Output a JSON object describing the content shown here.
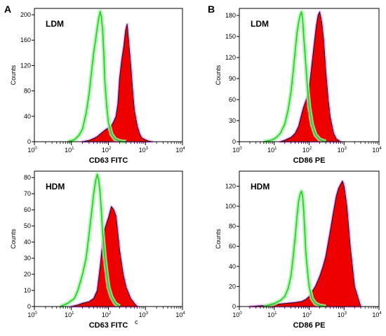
{
  "panel_letters": [
    "A",
    "B"
  ],
  "colors": {
    "filled": "#ee0000",
    "filled_outline": "#111111",
    "control": "#22cc22",
    "control_halo": "#a6f2a6",
    "fill_halo": "#ff77ff"
  },
  "stray_mark": "c",
  "chart_data": [
    {
      "id": "A-LDM",
      "panel": "A",
      "sample": "LDM",
      "type": "area",
      "xlabel": "CD63 FITC",
      "ylabel": "Counts",
      "xscale": "log",
      "xlim": [
        1,
        10000
      ],
      "ylim": [
        0,
        210
      ],
      "yticks": [
        0,
        40,
        80,
        120,
        160,
        200
      ],
      "xtick_bases": [
        "10",
        "10",
        "10",
        "10",
        "10"
      ],
      "xtick_exps": [
        "0",
        "1",
        "2",
        "3",
        "4"
      ],
      "series": [
        {
          "role": "stained",
          "style": "filled",
          "x": [
            20,
            30,
            40,
            50,
            60,
            80,
            100,
            120,
            140,
            160,
            180,
            200,
            230,
            260,
            290,
            320,
            350,
            400,
            450,
            500,
            600,
            700,
            800,
            1000,
            1200,
            1500
          ],
          "y": [
            0,
            2,
            5,
            8,
            12,
            18,
            22,
            25,
            32,
            40,
            60,
            100,
            130,
            150,
            175,
            185,
            160,
            120,
            80,
            50,
            25,
            12,
            6,
            3,
            1,
            0
          ]
        },
        {
          "role": "control",
          "style": "line",
          "x": [
            8,
            12,
            16,
            20,
            25,
            30,
            35,
            40,
            45,
            50,
            55,
            60,
            65,
            70,
            75,
            80,
            90,
            100,
            120,
            150,
            200,
            250,
            300
          ],
          "y": [
            0,
            3,
            10,
            20,
            45,
            75,
            110,
            140,
            160,
            180,
            195,
            205,
            195,
            175,
            140,
            95,
            55,
            30,
            12,
            4,
            1,
            0,
            0
          ]
        }
      ]
    },
    {
      "id": "A-HDM",
      "panel": "A",
      "sample": "HDM",
      "type": "area",
      "xlabel": "CD63 FITC",
      "ylabel": "Counts",
      "xscale": "log",
      "xlim": [
        1,
        10000
      ],
      "ylim": [
        0,
        84
      ],
      "yticks": [
        0,
        10,
        20,
        30,
        40,
        50,
        60,
        70,
        80
      ],
      "xtick_bases": [
        "10",
        "10",
        "10",
        "10",
        "10"
      ],
      "xtick_exps": [
        "0",
        "1",
        "2",
        "3",
        "4"
      ],
      "series": [
        {
          "role": "stained",
          "style": "filled",
          "x": [
            10,
            15,
            20,
            30,
            40,
            50,
            60,
            70,
            80,
            90,
            100,
            120,
            140,
            160,
            180,
            200,
            250,
            300,
            400,
            500,
            600
          ],
          "y": [
            0,
            1,
            2,
            3,
            5,
            10,
            25,
            40,
            48,
            52,
            55,
            62,
            60,
            56,
            45,
            35,
            20,
            12,
            5,
            2,
            0
          ]
        },
        {
          "role": "control",
          "style": "line",
          "x": [
            5,
            8,
            12,
            15,
            20,
            25,
            30,
            35,
            40,
            45,
            50,
            55,
            60,
            65,
            70,
            80,
            90,
            100,
            120,
            150,
            200
          ],
          "y": [
            0,
            2,
            5,
            10,
            20,
            30,
            45,
            58,
            70,
            78,
            82,
            78,
            70,
            58,
            45,
            30,
            20,
            12,
            6,
            2,
            0
          ]
        }
      ]
    },
    {
      "id": "B-LDM",
      "panel": "B",
      "sample": "LDM",
      "type": "area",
      "xlabel": "CD86 PE",
      "ylabel": "Counts",
      "xscale": "log",
      "xlim": [
        1,
        10000
      ],
      "ylim": [
        0,
        190
      ],
      "yticks": [
        0,
        30,
        60,
        90,
        120,
        150,
        180
      ],
      "xtick_bases": [
        "10",
        "10",
        "10",
        "10",
        "10"
      ],
      "xtick_exps": [
        "0",
        "1",
        "2",
        "3",
        "4"
      ],
      "series": [
        {
          "role": "stained",
          "style": "filled",
          "x": [
            15,
            20,
            30,
            40,
            50,
            60,
            70,
            80,
            90,
            100,
            120,
            140,
            160,
            180,
            200,
            230,
            260,
            300,
            350,
            400,
            500,
            600,
            800
          ],
          "y": [
            0,
            2,
            6,
            12,
            22,
            38,
            50,
            58,
            65,
            75,
            110,
            140,
            165,
            180,
            185,
            170,
            145,
            100,
            60,
            35,
            12,
            4,
            0
          ]
        },
        {
          "role": "control",
          "style": "line",
          "x": [
            5,
            8,
            10,
            12,
            15,
            20,
            25,
            30,
            35,
            40,
            45,
            50,
            55,
            60,
            65,
            70,
            80,
            90,
            100,
            120,
            150,
            200,
            300
          ],
          "y": [
            0,
            2,
            4,
            7,
            12,
            25,
            45,
            70,
            100,
            130,
            155,
            170,
            180,
            185,
            175,
            150,
            110,
            75,
            50,
            25,
            10,
            3,
            0
          ]
        }
      ]
    },
    {
      "id": "B-HDM",
      "panel": "B",
      "sample": "HDM",
      "type": "area",
      "xlabel": "CD86 PE",
      "ylabel": "Counts",
      "xscale": "log",
      "xlim": [
        1,
        10000
      ],
      "ylim": [
        0,
        135
      ],
      "yticks": [
        0,
        20,
        40,
        60,
        80,
        100,
        120
      ],
      "xtick_bases": [
        "10",
        "10",
        "10",
        "10",
        "10"
      ],
      "xtick_exps": [
        "0",
        "1",
        "2",
        "3",
        "4"
      ],
      "series": [
        {
          "role": "stained",
          "style": "filled",
          "x": [
            2,
            5,
            10,
            20,
            40,
            60,
            80,
            100,
            150,
            200,
            250,
            300,
            400,
            500,
            600,
            700,
            800,
            900,
            1000,
            1200,
            1500,
            2000,
            3000
          ],
          "y": [
            0,
            1,
            2,
            3,
            4,
            5,
            7,
            10,
            20,
            30,
            40,
            50,
            75,
            95,
            110,
            118,
            122,
            125,
            120,
            100,
            60,
            20,
            0
          ]
        },
        {
          "role": "control",
          "style": "line",
          "x": [
            5,
            10,
            15,
            20,
            25,
            30,
            35,
            40,
            45,
            50,
            55,
            60,
            65,
            70,
            75,
            80,
            90,
            100,
            120,
            150,
            200,
            300
          ],
          "y": [
            0,
            3,
            6,
            10,
            18,
            30,
            50,
            70,
            90,
            105,
            112,
            115,
            110,
            95,
            75,
            55,
            35,
            20,
            8,
            3,
            1,
            0
          ]
        }
      ]
    }
  ]
}
